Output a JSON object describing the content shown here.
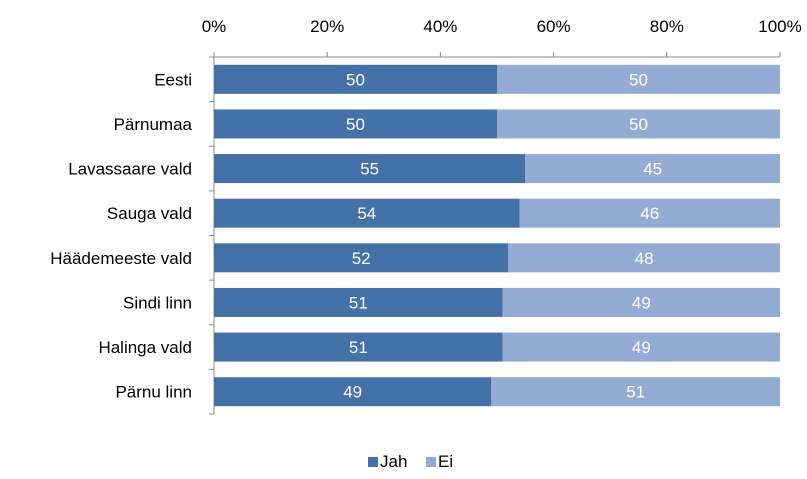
{
  "chart_data": {
    "type": "bar",
    "orientation": "horizontal",
    "stacked": "percent",
    "categories": [
      "Eesti",
      "Pärnumaa",
      "Lavassaare vald",
      "Sauga vald",
      "Häädemeeste vald",
      "Sindi linn",
      "Halinga vald",
      "Pärnu linn"
    ],
    "series": [
      {
        "name": "Jah",
        "values": [
          50,
          50,
          55,
          54,
          52,
          51,
          51,
          49
        ],
        "color": "#4472a8"
      },
      {
        "name": "Ei",
        "values": [
          50,
          50,
          45,
          46,
          48,
          49,
          49,
          51
        ],
        "color": "#94abd4"
      }
    ],
    "xlim": [
      0,
      100
    ],
    "x_ticks": [
      "0%",
      "20%",
      "40%",
      "60%",
      "80%",
      "100%"
    ],
    "x_axis_position": "top",
    "legend_position": "bottom",
    "grid": false,
    "data_label_color": "#ffffff",
    "axis_color": "#8c8c8c",
    "text_color": "#000000"
  }
}
